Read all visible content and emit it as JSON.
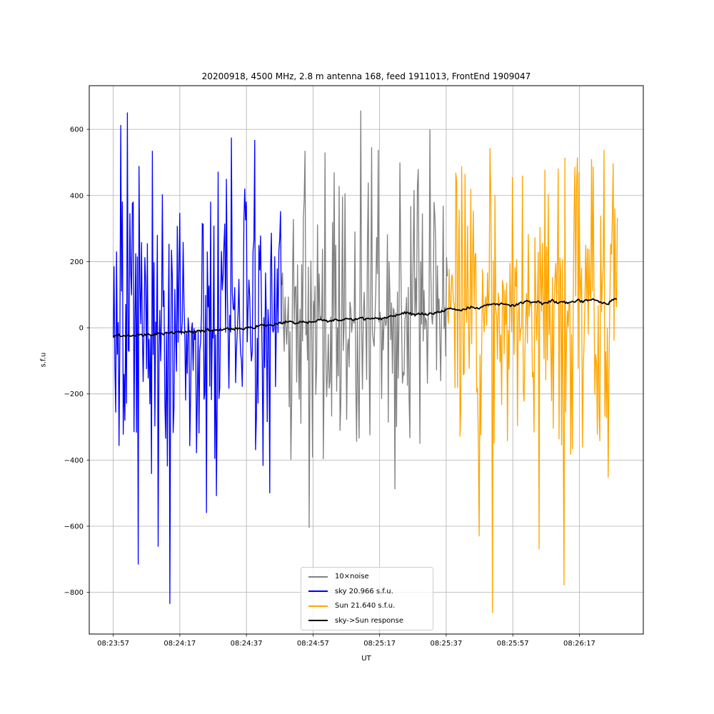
{
  "figure": {
    "background": "#ffffff"
  },
  "chart_data": {
    "type": "line",
    "title": "20200918, 4500 MHz, 2.8 m antenna 168, feed 1911013, FrontEnd 1909047",
    "xlabel": "UT",
    "ylabel": "s.f.u",
    "grid": true,
    "grid_color": "#b0b0b0",
    "axis_color": "#000000",
    "background_color": "#ffffff",
    "xlim_seconds": [
      -7.2,
      159.2
    ],
    "ylim": [
      -926,
      732
    ],
    "x_ticks": [
      {
        "label": "08:23:57",
        "t": 0
      },
      {
        "label": "08:24:17",
        "t": 20
      },
      {
        "label": "08:24:37",
        "t": 40
      },
      {
        "label": "08:24:57",
        "t": 60
      },
      {
        "label": "08:25:17",
        "t": 80
      },
      {
        "label": "08:25:37",
        "t": 100
      },
      {
        "label": "08:25:57",
        "t": 120
      },
      {
        "label": "08:26:17",
        "t": 140
      }
    ],
    "y_ticks": [
      {
        "label": "600",
        "v": 600
      },
      {
        "label": "400",
        "v": 400
      },
      {
        "label": "200",
        "v": 200
      },
      {
        "label": "0",
        "v": 0
      },
      {
        "label": "−200",
        "v": -200
      },
      {
        "label": "−400",
        "v": -400
      },
      {
        "label": "−600",
        "v": -600
      },
      {
        "label": "−800",
        "v": -800
      }
    ],
    "legend": {
      "position": "lower center",
      "entries": [
        {
          "label": "10×noise",
          "color": "#808080"
        },
        {
          "label": "sky 20.966 s.f.u.",
          "color": "#0000ff"
        },
        {
          "label": "Sun 21.640 s.f.u.",
          "color": "#ffa500"
        },
        {
          "label": "sky->Sun response",
          "color": "#000000"
        }
      ]
    },
    "measured_flux": {
      "sky_sfu": 20.966,
      "sun_sfu": 21.64
    },
    "series": [
      {
        "name": "10×noise",
        "kind": "noise",
        "color": "#808080",
        "t_start": 50.6,
        "t_end": 100.4,
        "typical_amplitude": 300,
        "observed_max": 660,
        "observed_min": -610,
        "seed": 11,
        "spikes": [
          [
            58.9,
            -605
          ],
          [
            63.5,
            530
          ],
          [
            66.4,
            470
          ],
          [
            74.3,
            657
          ],
          [
            77.6,
            546
          ],
          [
            79.7,
            538
          ],
          [
            86.0,
            500
          ],
          [
            91.5,
            480
          ],
          [
            95.1,
            600
          ]
        ]
      },
      {
        "name": "sky 20.966 s.f.u.",
        "kind": "noise",
        "color": "#0000ff",
        "t_start": 0,
        "t_end": 50.6,
        "typical_amplitude": 300,
        "observed_max": 655,
        "observed_min": -835,
        "seed": 7,
        "spikes": [
          [
            2.2,
            613
          ],
          [
            4.2,
            651
          ],
          [
            11.7,
            535
          ],
          [
            13.6,
            -662
          ],
          [
            16.9,
            -835
          ],
          [
            28.0,
            -560
          ],
          [
            31.4,
            472
          ],
          [
            34.0,
            450
          ],
          [
            42.5,
            568
          ],
          [
            46.9,
            -500
          ]
        ]
      },
      {
        "name": "Sun 21.640 s.f.u.",
        "kind": "noise",
        "color": "#ffa500",
        "t_start": 100.4,
        "t_end": 151.4,
        "typical_amplitude": 320,
        "observed_max": 543,
        "observed_min": -862,
        "seed": 23,
        "spikes": [
          [
            107.5,
            420
          ],
          [
            113.1,
            543
          ],
          [
            114.0,
            -862
          ],
          [
            120.0,
            455
          ],
          [
            123.0,
            460
          ],
          [
            128.0,
            -670
          ],
          [
            129.6,
            478
          ],
          [
            135.3,
            -779
          ],
          [
            140.0,
            470
          ],
          [
            147.3,
            538
          ],
          [
            150.0,
            330
          ]
        ]
      },
      {
        "name": "sky->Sun response",
        "kind": "line",
        "color": "#000000",
        "points": [
          [
            0,
            -28
          ],
          [
            1.5,
            -21
          ],
          [
            3,
            -25
          ],
          [
            4.5,
            -22
          ],
          [
            6,
            -25
          ],
          [
            7.5,
            -21
          ],
          [
            9,
            -24
          ],
          [
            10.5,
            -19
          ],
          [
            12,
            -23
          ],
          [
            13.5,
            -16
          ],
          [
            15,
            -20
          ],
          [
            16.5,
            -13
          ],
          [
            18,
            -17
          ],
          [
            19.5,
            -11
          ],
          [
            21,
            -15
          ],
          [
            22.5,
            -9
          ],
          [
            24,
            -14
          ],
          [
            25.5,
            -8
          ],
          [
            27,
            -12
          ],
          [
            28.5,
            -5
          ],
          [
            30,
            -10
          ],
          [
            31.5,
            -4
          ],
          [
            33,
            -8
          ],
          [
            34.5,
            -2
          ],
          [
            36,
            -6
          ],
          [
            37.5,
            0
          ],
          [
            39,
            -4
          ],
          [
            40.5,
            2
          ],
          [
            42,
            -2
          ],
          [
            43.5,
            5
          ],
          [
            45,
            9
          ],
          [
            46.5,
            4
          ],
          [
            48,
            8
          ],
          [
            49.5,
            13
          ],
          [
            50.6,
            15
          ],
          [
            52.5,
            18
          ],
          [
            54.5,
            14
          ],
          [
            56.5,
            19
          ],
          [
            58.5,
            16
          ],
          [
            60.5,
            21
          ],
          [
            62.5,
            24
          ],
          [
            64.5,
            19
          ],
          [
            66.5,
            25
          ],
          [
            68.5,
            22
          ],
          [
            70.5,
            27
          ],
          [
            72.5,
            24
          ],
          [
            74.5,
            29
          ],
          [
            76.5,
            26
          ],
          [
            78.5,
            31
          ],
          [
            80.5,
            27
          ],
          [
            82.5,
            33
          ],
          [
            84.5,
            37
          ],
          [
            86.5,
            44
          ],
          [
            88.5,
            47
          ],
          [
            90.5,
            38
          ],
          [
            92.5,
            43
          ],
          [
            94.5,
            40
          ],
          [
            96.5,
            45
          ],
          [
            98.5,
            49
          ],
          [
            100.4,
            55
          ],
          [
            102,
            58
          ],
          [
            103.5,
            51
          ],
          [
            105,
            56
          ],
          [
            106.5,
            60
          ],
          [
            108,
            63
          ],
          [
            109.5,
            57
          ],
          [
            111,
            64
          ],
          [
            112.5,
            68
          ],
          [
            114,
            72
          ],
          [
            115.5,
            69
          ],
          [
            117,
            75
          ],
          [
            118.5,
            70
          ],
          [
            120,
            66
          ],
          [
            121.5,
            72
          ],
          [
            123,
            77
          ],
          [
            124.5,
            80
          ],
          [
            126,
            75
          ],
          [
            127.5,
            81
          ],
          [
            129,
            70
          ],
          [
            130.5,
            77
          ],
          [
            132,
            82
          ],
          [
            133.5,
            76
          ],
          [
            135,
            81
          ],
          [
            136.5,
            72
          ],
          [
            138,
            78
          ],
          [
            139.5,
            83
          ],
          [
            141,
            79
          ],
          [
            142.5,
            85
          ],
          [
            144,
            88
          ],
          [
            145.5,
            82
          ],
          [
            147,
            76
          ],
          [
            148.5,
            71
          ],
          [
            150,
            86
          ],
          [
            151.4,
            88
          ]
        ]
      }
    ]
  }
}
